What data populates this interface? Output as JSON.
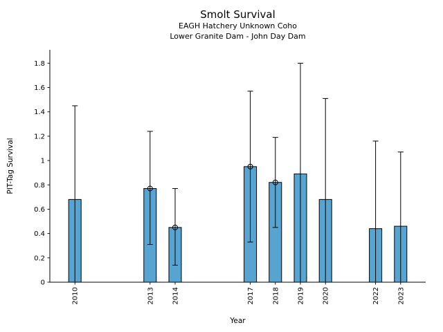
{
  "chart_data": {
    "type": "bar",
    "title": "Smolt Survival",
    "subtitle": [
      "EAGH Hatchery Unknown Coho",
      "Lower Granite Dam - John Day Dam"
    ],
    "xlabel": "Year",
    "ylabel": "PIT-Tag Survival",
    "xlim": [
      2009,
      2024
    ],
    "ylim": [
      0,
      1.91
    ],
    "yticks": [
      0,
      0.2,
      0.4,
      0.6,
      0.8,
      1,
      1.2,
      1.4,
      1.6,
      1.8
    ],
    "xticks": [
      2010,
      2013,
      2014,
      2017,
      2018,
      2019,
      2020,
      2022,
      2023
    ],
    "grid": false,
    "legend": "none",
    "bar_color": "#58A4D0",
    "bar_edge_color": "#000000",
    "error_color": "#000000",
    "series": [
      {
        "year": 2010,
        "value": 0.68,
        "err_low": 0.0,
        "err_high": 1.45,
        "marker": false
      },
      {
        "year": 2013,
        "value": 0.77,
        "err_low": 0.31,
        "err_high": 1.24,
        "marker": true
      },
      {
        "year": 2014,
        "value": 0.45,
        "err_low": 0.14,
        "err_high": 0.77,
        "marker": true
      },
      {
        "year": 2017,
        "value": 0.95,
        "err_low": 0.33,
        "err_high": 1.57,
        "marker": true
      },
      {
        "year": 2018,
        "value": 0.82,
        "err_low": 0.45,
        "err_high": 1.19,
        "marker": true
      },
      {
        "year": 2019,
        "value": 0.89,
        "err_low": 0.0,
        "err_high": 1.8,
        "marker": false
      },
      {
        "year": 2020,
        "value": 0.68,
        "err_low": 0.0,
        "err_high": 1.51,
        "marker": false
      },
      {
        "year": 2022,
        "value": 0.44,
        "err_low": 0.0,
        "err_high": 1.16,
        "marker": false
      },
      {
        "year": 2023,
        "value": 0.46,
        "err_low": 0.0,
        "err_high": 1.07,
        "marker": false
      }
    ]
  }
}
